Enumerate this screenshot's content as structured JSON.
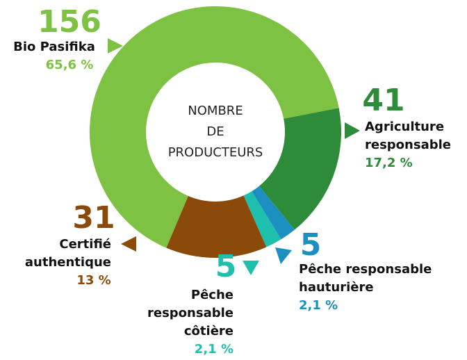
{
  "chart_data": {
    "type": "donut",
    "center_label": [
      "NOMBRE",
      "DE",
      "PRODUCTEURS"
    ],
    "categories": [
      [
        "Bio Pasifika"
      ],
      [
        "Agriculture",
        "responsable"
      ],
      [
        "Pêche responsable",
        "hauturière"
      ],
      [
        "Pêche",
        "responsable",
        "côtière"
      ],
      [
        "Certifié",
        "authentique"
      ]
    ],
    "values": [
      156,
      41,
      5,
      5,
      31
    ],
    "percent_labels": [
      "65,6 %",
      "17,2 %",
      "2,1 %",
      "2,1 %",
      "13 %"
    ],
    "colors": [
      "#7dc242",
      "#2e8b3a",
      "#1b8fc0",
      "#1fbfae",
      "#8b4a0a"
    ]
  }
}
